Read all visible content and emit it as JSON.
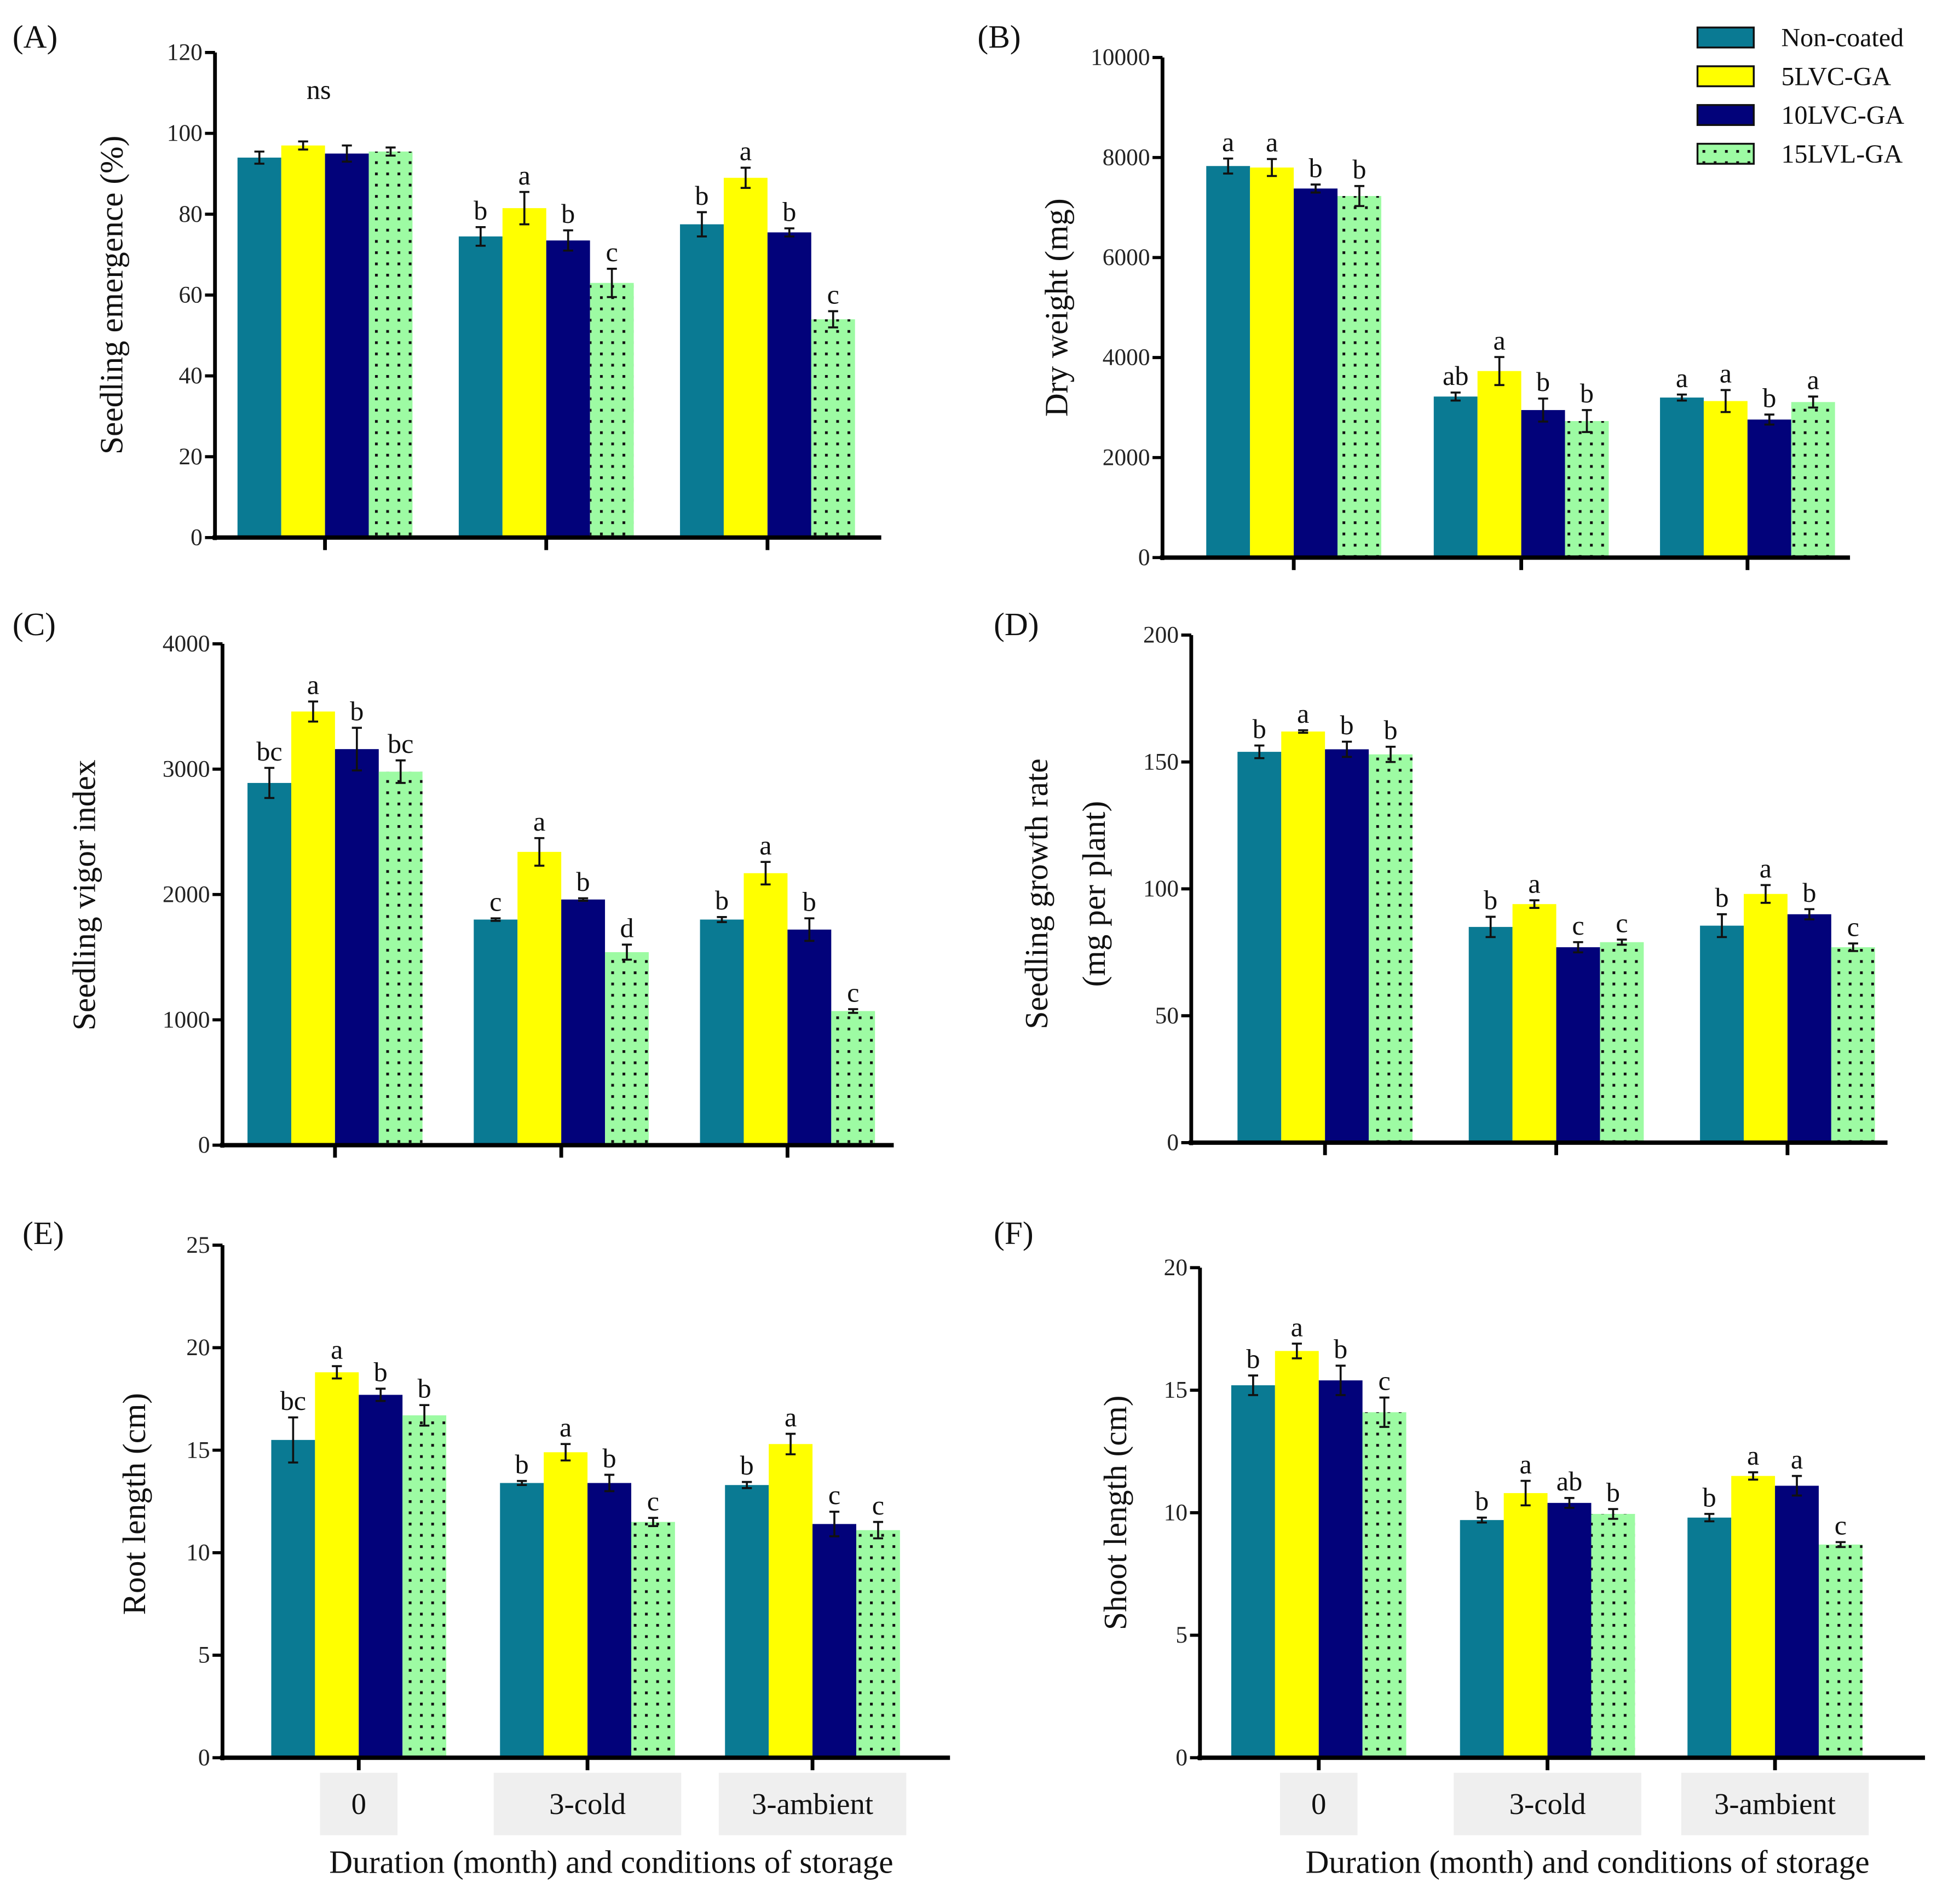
{
  "legend": [
    {
      "name": "Non-coated",
      "color": "#0a7a93",
      "pattern": "solid"
    },
    {
      "name": "5LVC-GA",
      "color": "#ffff00",
      "pattern": "solid"
    },
    {
      "name": "10LVC-GA",
      "color": "#02027a",
      "pattern": "solid"
    },
    {
      "name": "15LVL-GA",
      "color": "#9dfba3",
      "pattern": "dotted"
    }
  ],
  "chart_data": [
    {
      "type": "bar",
      "panel": "(A)",
      "ylabel": [
        "Seedling emergence (%)"
      ],
      "ylim": [
        0,
        120
      ],
      "yticks": [
        0,
        20,
        40,
        60,
        80,
        100,
        120
      ],
      "categories": [
        "0",
        "3-cold",
        "3-ambient"
      ],
      "show_categories": false,
      "xlabel": "",
      "group_labels": [
        "ns",
        "",
        ""
      ],
      "series": [
        {
          "name": "Non-coated",
          "values": [
            94,
            74.5,
            77.5
          ],
          "errors": [
            1.5,
            2.3,
            3
          ],
          "letters": [
            "",
            "b",
            "b"
          ]
        },
        {
          "name": "5LVC-GA",
          "values": [
            97,
            81.5,
            89
          ],
          "errors": [
            1,
            4,
            2.5
          ],
          "letters": [
            "",
            "a",
            "a"
          ]
        },
        {
          "name": "10LVC-GA",
          "values": [
            95,
            73.5,
            75.5
          ],
          "errors": [
            2,
            2.5,
            1
          ],
          "letters": [
            "",
            "b",
            "b"
          ]
        },
        {
          "name": "15LVL-GA",
          "values": [
            95.5,
            63,
            54
          ],
          "errors": [
            1,
            3.5,
            2
          ],
          "letters": [
            "",
            "c",
            "c"
          ]
        }
      ]
    },
    {
      "type": "bar",
      "panel": "(B)",
      "ylabel": [
        "Dry weight (mg)"
      ],
      "ylim": [
        0,
        10000
      ],
      "yticks": [
        0,
        2000,
        4000,
        6000,
        8000,
        10000
      ],
      "categories": [
        "0",
        "3-cold",
        "3-ambient"
      ],
      "show_categories": false,
      "xlabel": "",
      "group_labels": [
        "",
        "",
        ""
      ],
      "series": [
        {
          "name": "Non-coated",
          "values": [
            7830,
            3220,
            3200
          ],
          "errors": [
            150,
            80,
            60
          ],
          "letters": [
            "a",
            "ab",
            "a"
          ]
        },
        {
          "name": "5LVC-GA",
          "values": [
            7800,
            3730,
            3130
          ],
          "errors": [
            170,
            280,
            220
          ],
          "letters": [
            "a",
            "a",
            "a"
          ]
        },
        {
          "name": "10LVC-GA",
          "values": [
            7380,
            2950,
            2760
          ],
          "errors": [
            80,
            230,
            100
          ],
          "letters": [
            "b",
            "b",
            "b"
          ]
        },
        {
          "name": "15LVL-GA",
          "values": [
            7230,
            2730,
            3110
          ],
          "errors": [
            200,
            220,
            110
          ],
          "letters": [
            "b",
            "b",
            "a"
          ]
        }
      ]
    },
    {
      "type": "bar",
      "panel": "(C)",
      "ylabel": [
        "Seedling vigor index"
      ],
      "ylim": [
        0,
        4000
      ],
      "yticks": [
        0,
        1000,
        2000,
        3000,
        4000
      ],
      "categories": [
        "0",
        "3-cold",
        "3-ambient"
      ],
      "show_categories": false,
      "xlabel": "",
      "group_labels": [
        "",
        "",
        ""
      ],
      "series": [
        {
          "name": "Non-coated",
          "values": [
            2890,
            1800,
            1800
          ],
          "errors": [
            120,
            10,
            20
          ],
          "letters": [
            "bc",
            "c",
            "b"
          ]
        },
        {
          "name": "5LVC-GA",
          "values": [
            3460,
            2340,
            2170
          ],
          "errors": [
            80,
            110,
            90
          ],
          "letters": [
            "a",
            "a",
            "a"
          ]
        },
        {
          "name": "10LVC-GA",
          "values": [
            3160,
            1960,
            1720
          ],
          "errors": [
            170,
            10,
            90
          ],
          "letters": [
            "b",
            "b",
            "b"
          ]
        },
        {
          "name": "15LVL-GA",
          "values": [
            2980,
            1540,
            1070
          ],
          "errors": [
            90,
            60,
            15
          ],
          "letters": [
            "bc",
            "d",
            "c"
          ]
        }
      ]
    },
    {
      "type": "bar",
      "panel": "(D)",
      "ylabel": [
        "Seedling growth rate",
        "(mg per plant)"
      ],
      "ylim": [
        0,
        200
      ],
      "yticks": [
        0,
        50,
        100,
        150,
        200
      ],
      "categories": [
        "0",
        "3-cold",
        "3-ambient"
      ],
      "show_categories": false,
      "xlabel": "",
      "group_labels": [
        "",
        "",
        ""
      ],
      "series": [
        {
          "name": "Non-coated",
          "values": [
            154,
            85,
            85.5
          ],
          "errors": [
            2.5,
            4,
            4.5
          ],
          "letters": [
            "b",
            "b",
            "b"
          ]
        },
        {
          "name": "5LVC-GA",
          "values": [
            162,
            94,
            98
          ],
          "errors": [
            0.5,
            1.5,
            3.5
          ],
          "letters": [
            "a",
            "a",
            "a"
          ]
        },
        {
          "name": "10LVC-GA",
          "values": [
            155,
            77,
            90
          ],
          "errors": [
            3,
            2,
            2
          ],
          "letters": [
            "b",
            "c",
            "b"
          ]
        },
        {
          "name": "15LVL-GA",
          "values": [
            153,
            79,
            77
          ],
          "errors": [
            3,
            1,
            1.5
          ],
          "letters": [
            "b",
            "c",
            "c"
          ]
        }
      ]
    },
    {
      "type": "bar",
      "panel": "(E)",
      "ylabel": [
        "Root length (cm)"
      ],
      "ylim": [
        0,
        25
      ],
      "yticks": [
        0,
        5,
        10,
        15,
        20,
        25
      ],
      "categories": [
        "0",
        "3-cold",
        "3-ambient"
      ],
      "show_categories": true,
      "xlabel": "Duration (month)  and conditions of storage",
      "group_labels": [
        "",
        "",
        ""
      ],
      "series": [
        {
          "name": "Non-coated",
          "values": [
            15.5,
            13.4,
            13.3
          ],
          "errors": [
            1.1,
            0.1,
            0.15
          ],
          "letters": [
            "bc",
            "b",
            "b"
          ]
        },
        {
          "name": "5LVC-GA",
          "values": [
            18.8,
            14.9,
            15.3
          ],
          "errors": [
            0.3,
            0.4,
            0.5
          ],
          "letters": [
            "a",
            "a",
            "a"
          ]
        },
        {
          "name": "10LVC-GA",
          "values": [
            17.7,
            13.4,
            11.4
          ],
          "errors": [
            0.3,
            0.4,
            0.6
          ],
          "letters": [
            "b",
            "b",
            "c"
          ]
        },
        {
          "name": "15LVL-GA",
          "values": [
            16.7,
            11.5,
            11.1
          ],
          "errors": [
            0.5,
            0.2,
            0.4
          ],
          "letters": [
            "b",
            "c",
            "c"
          ]
        }
      ]
    },
    {
      "type": "bar",
      "panel": "(F)",
      "ylabel": [
        "Shoot length (cm)"
      ],
      "ylim": [
        0,
        20
      ],
      "yticks": [
        0,
        5,
        10,
        15,
        20
      ],
      "categories": [
        "0",
        "3-cold",
        "3-ambient"
      ],
      "show_categories": true,
      "xlabel": "Duration (month)  and conditions of storage",
      "group_labels": [
        "",
        "",
        ""
      ],
      "series": [
        {
          "name": "Non-coated",
          "values": [
            15.2,
            9.7,
            9.8
          ],
          "errors": [
            0.4,
            0.1,
            0.15
          ],
          "letters": [
            "b",
            "b",
            "b"
          ]
        },
        {
          "name": "5LVC-GA",
          "values": [
            16.6,
            10.8,
            11.5
          ],
          "errors": [
            0.3,
            0.5,
            0.15
          ],
          "letters": [
            "a",
            "a",
            "a"
          ]
        },
        {
          "name": "10LVC-GA",
          "values": [
            15.4,
            10.4,
            11.1
          ],
          "errors": [
            0.6,
            0.2,
            0.4
          ],
          "letters": [
            "b",
            "ab",
            "a"
          ]
        },
        {
          "name": "15LVL-GA",
          "values": [
            14.1,
            9.95,
            8.7
          ],
          "errors": [
            0.6,
            0.2,
            0.1
          ],
          "letters": [
            "c",
            "b",
            "c"
          ]
        }
      ]
    }
  ]
}
